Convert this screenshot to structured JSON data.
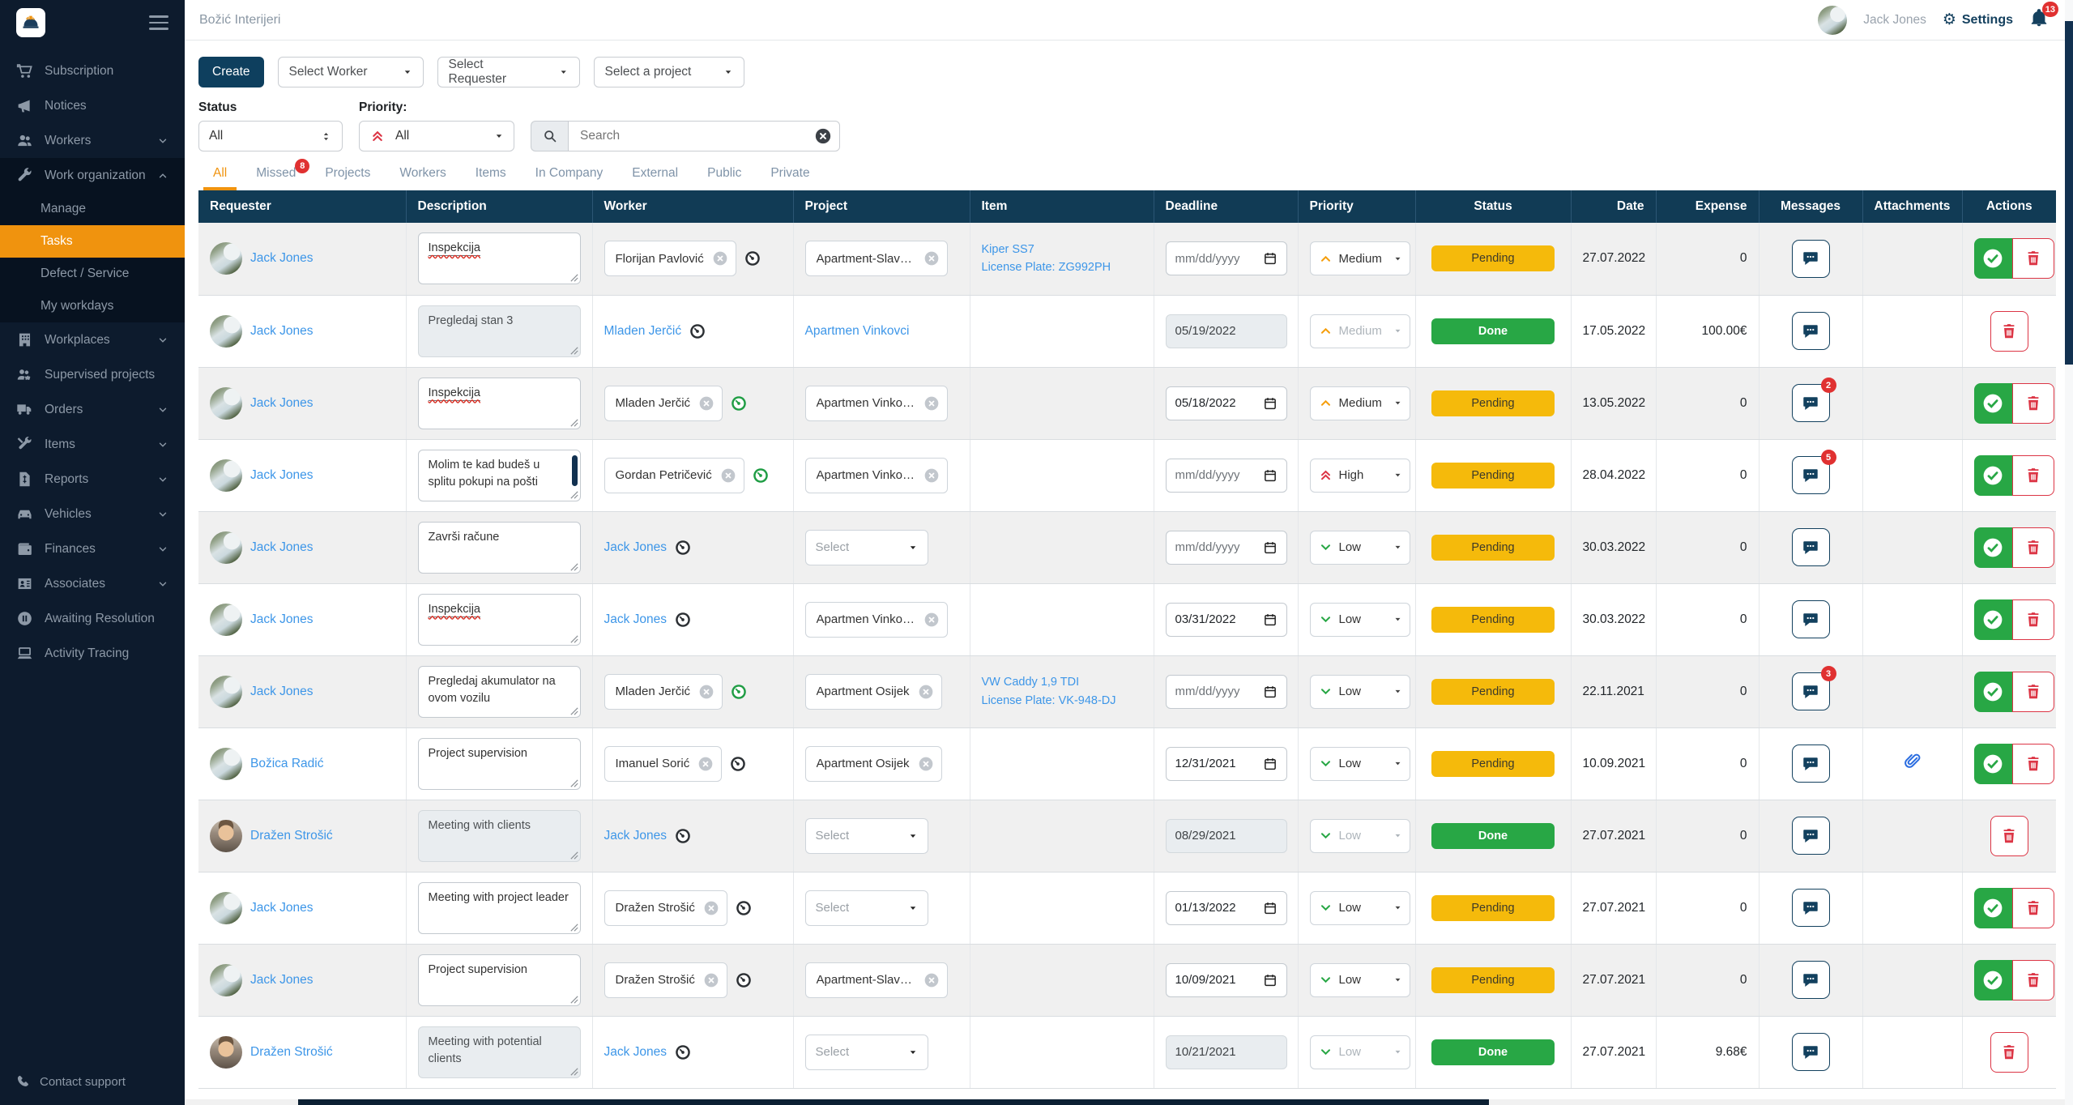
{
  "palette": {
    "sidebar_bg": "#0d1b2d",
    "accent_orange": "#f0930e",
    "header_navy": "#113b55",
    "pending_yellow": "#f5ba0b",
    "done_green": "#28a745",
    "danger_red": "#dc3545",
    "link_blue": "#3d96e8",
    "create_navy": "#0e3f5e"
  },
  "header": {
    "title": "Božić Interijeri",
    "user_name": "Jack Jones",
    "settings_label": "Settings",
    "notification_count": "13"
  },
  "sidebar": {
    "items": [
      {
        "label": "Subscription",
        "icon": "cart"
      },
      {
        "label": "Notices",
        "icon": "megaphone"
      },
      {
        "label": "Workers",
        "icon": "users",
        "chevron": "down"
      },
      {
        "label": "Work organization",
        "icon": "wrench",
        "chevron": "up",
        "expanded": true,
        "children": [
          {
            "label": "Manage"
          },
          {
            "label": "Tasks",
            "active": true
          },
          {
            "label": "Defect / Service"
          },
          {
            "label": "My workdays"
          }
        ]
      },
      {
        "label": "Workplaces",
        "icon": "building",
        "chevron": "down"
      },
      {
        "label": "Supervised projects",
        "icon": "users-gear"
      },
      {
        "label": "Orders",
        "icon": "truck",
        "chevron": "down"
      },
      {
        "label": "Items",
        "icon": "tools",
        "chevron": "down"
      },
      {
        "label": "Reports",
        "icon": "report",
        "chevron": "down"
      },
      {
        "label": "Vehicles",
        "icon": "car",
        "chevron": "down"
      },
      {
        "label": "Finances",
        "icon": "wallet",
        "chevron": "down"
      },
      {
        "label": "Associates",
        "icon": "id-card",
        "chevron": "down"
      },
      {
        "label": "Awaiting Resolution",
        "icon": "pause-circle"
      },
      {
        "label": "Activity Tracing",
        "icon": "laptop"
      }
    ],
    "footer_item": {
      "label": "Contact support",
      "icon": "phone"
    }
  },
  "filters": {
    "create_label": "Create",
    "worker_placeholder": "Select Worker",
    "requester_placeholder": "Select Requester",
    "project_placeholder": "Select a project",
    "status_label": "Status",
    "status_value": "All",
    "priority_label": "Priority:",
    "priority_value": "All",
    "search_placeholder": "Search"
  },
  "tabs": [
    {
      "label": "All",
      "active": true
    },
    {
      "label": "Missed",
      "badge": "8"
    },
    {
      "label": "Projects"
    },
    {
      "label": "Workers"
    },
    {
      "label": "Items"
    },
    {
      "label": "In Company"
    },
    {
      "label": "External"
    },
    {
      "label": "Public"
    },
    {
      "label": "Private"
    }
  ],
  "table": {
    "columns": [
      "Requester",
      "Description",
      "Worker",
      "Project",
      "Item",
      "Deadline",
      "Priority",
      "Status",
      "Date",
      "Expense",
      "Messages",
      "Attachments",
      "Actions"
    ],
    "rows": [
      {
        "requester": "Jack Jones",
        "avatar": "waterfall",
        "description": "Inspekcija",
        "desc_disabled": false,
        "misspelled": true,
        "desc_scrollbar": false,
        "worker": {
          "type": "pill",
          "name": "Florijan Pavlović",
          "eye": "dark"
        },
        "project": {
          "type": "pill",
          "name": "Apartment-Slavon..."
        },
        "item_lines": [
          "Kiper SS7",
          "License Plate: ZG992PH"
        ],
        "deadline": {
          "value": "mm/dd/yyyy",
          "placeholder": true,
          "disabled": false
        },
        "priority": {
          "level": "Medium",
          "disabled": false
        },
        "status": "Pending",
        "date": "27.07.2022",
        "expense": "0",
        "messages_badge": "",
        "attachment": false,
        "actions": [
          "done",
          "delete"
        ]
      },
      {
        "requester": "Jack Jones",
        "avatar": "waterfall",
        "description": "Pregledaj stan 3",
        "desc_disabled": true,
        "misspelled": false,
        "desc_scrollbar": false,
        "worker": {
          "type": "link",
          "name": "Mladen Jerčić",
          "eye": "dark"
        },
        "project": {
          "type": "link",
          "name": "Apartmen Vinkovci"
        },
        "item_lines": [],
        "deadline": {
          "value": "05/19/2022",
          "placeholder": false,
          "disabled": true
        },
        "priority": {
          "level": "Medium",
          "disabled": true
        },
        "status": "Done",
        "date": "17.05.2022",
        "expense": "100.00€",
        "messages_badge": "",
        "attachment": false,
        "actions": [
          "delete"
        ]
      },
      {
        "requester": "Jack Jones",
        "avatar": "waterfall",
        "description": "Inspekcija",
        "desc_disabled": false,
        "misspelled": true,
        "desc_scrollbar": false,
        "worker": {
          "type": "pill",
          "name": "Mladen Jerčić",
          "eye": "green"
        },
        "project": {
          "type": "pill",
          "name": "Apartmen Vinkovci"
        },
        "item_lines": [],
        "deadline": {
          "value": "05/18/2022",
          "placeholder": false,
          "disabled": false
        },
        "priority": {
          "level": "Medium",
          "disabled": false
        },
        "status": "Pending",
        "date": "13.05.2022",
        "expense": "0",
        "messages_badge": "2",
        "attachment": false,
        "actions": [
          "done",
          "delete"
        ]
      },
      {
        "requester": "Jack Jones",
        "avatar": "waterfall",
        "description": "Molim te kad budeš u splitu pokupi na pošti",
        "desc_disabled": false,
        "misspelled": false,
        "desc_scrollbar": true,
        "worker": {
          "type": "pill",
          "name": "Gordan Petričević",
          "eye": "green"
        },
        "project": {
          "type": "pill",
          "name": "Apartmen Vinkovci"
        },
        "item_lines": [],
        "deadline": {
          "value": "mm/dd/yyyy",
          "placeholder": true,
          "disabled": false
        },
        "priority": {
          "level": "High",
          "disabled": false
        },
        "status": "Pending",
        "date": "28.04.2022",
        "expense": "0",
        "messages_badge": "5",
        "attachment": false,
        "actions": [
          "done",
          "delete"
        ]
      },
      {
        "requester": "Jack Jones",
        "avatar": "waterfall",
        "description": "Završi račune",
        "desc_disabled": false,
        "misspelled": false,
        "desc_scrollbar": false,
        "worker": {
          "type": "link",
          "name": "Jack Jones",
          "eye": "dark"
        },
        "project": {
          "type": "select",
          "name": "Select"
        },
        "item_lines": [],
        "deadline": {
          "value": "mm/dd/yyyy",
          "placeholder": true,
          "disabled": false
        },
        "priority": {
          "level": "Low",
          "disabled": false
        },
        "status": "Pending",
        "date": "30.03.2022",
        "expense": "0",
        "messages_badge": "",
        "attachment": false,
        "actions": [
          "done",
          "delete"
        ]
      },
      {
        "requester": "Jack Jones",
        "avatar": "waterfall",
        "description": "Inspekcija",
        "desc_disabled": false,
        "misspelled": true,
        "desc_scrollbar": false,
        "worker": {
          "type": "link",
          "name": "Jack Jones",
          "eye": "dark"
        },
        "project": {
          "type": "pill",
          "name": "Apartmen Vinkovci"
        },
        "item_lines": [],
        "deadline": {
          "value": "03/31/2022",
          "placeholder": false,
          "disabled": false
        },
        "priority": {
          "level": "Low",
          "disabled": false
        },
        "status": "Pending",
        "date": "30.03.2022",
        "expense": "0",
        "messages_badge": "",
        "attachment": false,
        "actions": [
          "done",
          "delete"
        ]
      },
      {
        "requester": "Jack Jones",
        "avatar": "waterfall",
        "description": "Pregledaj akumulator na ovom vozilu",
        "desc_disabled": false,
        "misspelled": false,
        "desc_scrollbar": false,
        "worker": {
          "type": "pill",
          "name": "Mladen Jerčić",
          "eye": "green"
        },
        "project": {
          "type": "pill",
          "name": "Apartment Osijek"
        },
        "item_lines": [
          "VW Caddy 1,9 TDI",
          "License Plate: VK-948-DJ"
        ],
        "deadline": {
          "value": "mm/dd/yyyy",
          "placeholder": true,
          "disabled": false
        },
        "priority": {
          "level": "Low",
          "disabled": false
        },
        "status": "Pending",
        "date": "22.11.2021",
        "expense": "0",
        "messages_badge": "3",
        "attachment": false,
        "actions": [
          "done",
          "delete"
        ]
      },
      {
        "requester": "Božica Radić",
        "avatar": "waterfall",
        "description": "Project supervision",
        "desc_disabled": false,
        "misspelled": false,
        "desc_scrollbar": false,
        "worker": {
          "type": "pill",
          "name": "Imanuel Sorić",
          "eye": "dark"
        },
        "project": {
          "type": "pill",
          "name": "Apartment Osijek"
        },
        "item_lines": [],
        "deadline": {
          "value": "12/31/2021",
          "placeholder": false,
          "disabled": false
        },
        "priority": {
          "level": "Low",
          "disabled": false
        },
        "status": "Pending",
        "date": "10.09.2021",
        "expense": "0",
        "messages_badge": "",
        "attachment": true,
        "actions": [
          "done",
          "delete"
        ]
      },
      {
        "requester": "Dražen Strošić",
        "avatar": "man",
        "description": "Meeting with clients",
        "desc_disabled": true,
        "misspelled": false,
        "desc_scrollbar": false,
        "worker": {
          "type": "link",
          "name": "Jack Jones",
          "eye": "dark"
        },
        "project": {
          "type": "select",
          "name": "Select"
        },
        "item_lines": [],
        "deadline": {
          "value": "08/29/2021",
          "placeholder": false,
          "disabled": true
        },
        "priority": {
          "level": "Low",
          "disabled": true
        },
        "status": "Done",
        "date": "27.07.2021",
        "expense": "0",
        "messages_badge": "",
        "attachment": false,
        "actions": [
          "delete"
        ]
      },
      {
        "requester": "Jack Jones",
        "avatar": "waterfall",
        "description": "Meeting with project leader",
        "desc_disabled": false,
        "misspelled": false,
        "desc_scrollbar": false,
        "worker": {
          "type": "pill",
          "name": "Dražen Strošić",
          "eye": "dark"
        },
        "project": {
          "type": "select",
          "name": "Select"
        },
        "item_lines": [],
        "deadline": {
          "value": "01/13/2022",
          "placeholder": false,
          "disabled": false
        },
        "priority": {
          "level": "Low",
          "disabled": false
        },
        "status": "Pending",
        "date": "27.07.2021",
        "expense": "0",
        "messages_badge": "",
        "attachment": false,
        "actions": [
          "done",
          "delete"
        ]
      },
      {
        "requester": "Jack Jones",
        "avatar": "waterfall",
        "description": "Project supervision",
        "desc_disabled": false,
        "misspelled": false,
        "desc_scrollbar": false,
        "worker": {
          "type": "pill",
          "name": "Dražen Strošić",
          "eye": "dark"
        },
        "project": {
          "type": "pill",
          "name": "Apartment-Slavon..."
        },
        "item_lines": [],
        "deadline": {
          "value": "10/09/2021",
          "placeholder": false,
          "disabled": false
        },
        "priority": {
          "level": "Low",
          "disabled": false
        },
        "status": "Pending",
        "date": "27.07.2021",
        "expense": "0",
        "messages_badge": "",
        "attachment": false,
        "actions": [
          "done",
          "delete"
        ]
      },
      {
        "requester": "Dražen Strošić",
        "avatar": "man",
        "description": "Meeting with potential clients",
        "desc_disabled": true,
        "misspelled": false,
        "desc_scrollbar": false,
        "worker": {
          "type": "link",
          "name": "Jack Jones",
          "eye": "dark"
        },
        "project": {
          "type": "select",
          "name": "Select"
        },
        "item_lines": [],
        "deadline": {
          "value": "10/21/2021",
          "placeholder": false,
          "disabled": true
        },
        "priority": {
          "level": "Low",
          "disabled": true
        },
        "status": "Done",
        "date": "27.07.2021",
        "expense": "9.68€",
        "messages_badge": "",
        "attachment": false,
        "actions": [
          "delete"
        ]
      }
    ]
  }
}
